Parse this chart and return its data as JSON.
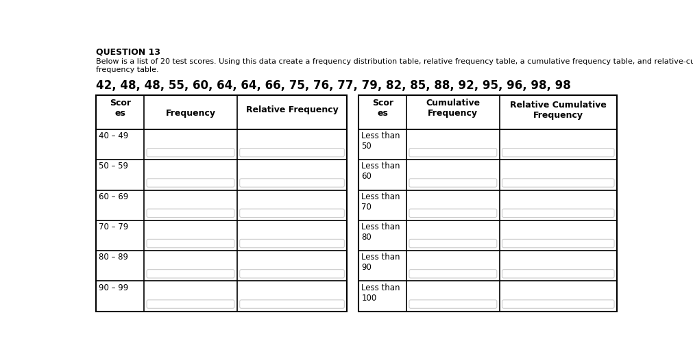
{
  "title": "QUESTION 13",
  "description": "Below is a list of 20 test scores. Using this data create a frequency distribution table, relative frequency table, a cumulative frequency table, and relative-cumulative\nfrequency table.",
  "scores_line": "42, 48, 48, 55, 60, 64, 64, 66, 75, 76, 77, 79, 82, 85, 88, 92, 95, 96, 98, 98",
  "left_rows": [
    "40 – 49",
    "50 – 59",
    "60 – 69",
    "70 – 79",
    "80 – 89",
    "90 – 99"
  ],
  "right_rows": [
    "Less than\n50",
    "Less than\n60",
    "Less than\n70",
    "Less than\n80",
    "Less than\n90",
    "Less than\n100"
  ],
  "bg_color": "#ffffff",
  "text_color": "#000000",
  "border_color": "#000000",
  "subline_color": "#cccccc"
}
